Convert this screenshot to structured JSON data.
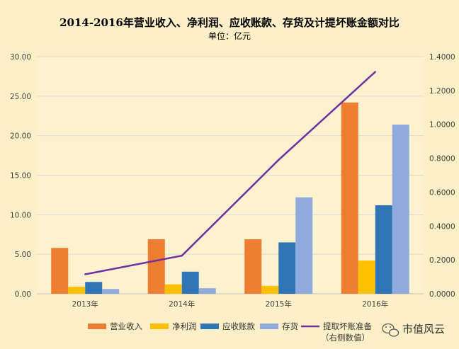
{
  "chart_data": {
    "type": "bar",
    "title": "2014-2016年营业收入、净利润、应收账款、存货及计提坏账金额对比",
    "subtitle": "单位：亿元",
    "categories": [
      "2013年",
      "2014年",
      "2015年",
      "2016年"
    ],
    "y_left": {
      "ylim": [
        0,
        30
      ],
      "ticks": [
        "0.00",
        "5.00",
        "10.00",
        "15.00",
        "20.00",
        "25.00",
        "30.00"
      ]
    },
    "y_right": {
      "ylim": [
        0,
        1.4
      ],
      "ticks": [
        "0.0000",
        "0.2000",
        "0.4000",
        "0.6000",
        "0.8000",
        "1.0000",
        "1.2000",
        "1.4000"
      ]
    },
    "grid": "horizontal",
    "legend_position": "bottom",
    "series": [
      {
        "name": "营业收入",
        "type": "bar",
        "axis": "left",
        "color": "#ed7d31",
        "values": [
          5.8,
          6.9,
          6.9,
          24.2
        ]
      },
      {
        "name": "净利润",
        "type": "bar",
        "axis": "left",
        "color": "#ffc000",
        "values": [
          0.9,
          1.2,
          1.0,
          4.2
        ]
      },
      {
        "name": "应收账款",
        "type": "bar",
        "axis": "left",
        "color": "#2e75b6",
        "values": [
          1.5,
          2.8,
          6.5,
          11.2
        ]
      },
      {
        "name": "存货",
        "type": "bar",
        "axis": "left",
        "color": "#8faadc",
        "values": [
          0.6,
          0.7,
          12.2,
          21.4
        ]
      },
      {
        "name": "提取坏账准备",
        "name_line2": "（右侧数值）",
        "type": "line",
        "axis": "right",
        "color": "#7030a0",
        "values": [
          0.115,
          0.225,
          0.79,
          1.31
        ]
      }
    ]
  },
  "watermark": {
    "icon": "wechat-icon",
    "text": "市值风云"
  }
}
